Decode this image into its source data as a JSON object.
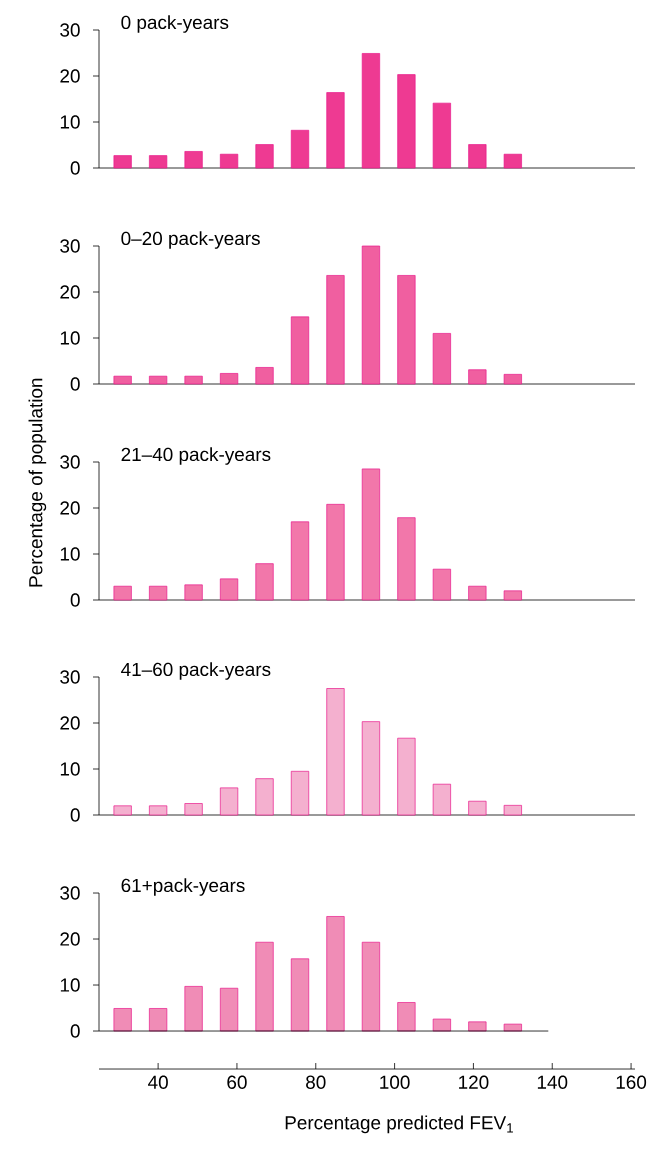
{
  "chart_data": [
    {
      "type": "bar",
      "title": "0 pack-years",
      "x": [
        31,
        40,
        49,
        58,
        67,
        76,
        85,
        94,
        103,
        112,
        121,
        130
      ],
      "values": [
        2.7,
        2.7,
        3.6,
        3.0,
        5.1,
        8.2,
        16.4,
        24.9,
        20.3,
        14.1,
        5.1,
        3.0
      ],
      "color": "#ee3a92",
      "xlim": [
        25,
        161
      ],
      "ylim": [
        0,
        30
      ],
      "yticks": [
        0,
        10,
        20,
        30
      ],
      "tick_labels": "y",
      "grid": false
    },
    {
      "type": "bar",
      "title": "0–20 pack-years",
      "x": [
        31,
        40,
        49,
        58,
        67,
        76,
        85,
        94,
        103,
        112,
        121,
        130
      ],
      "values": [
        1.7,
        1.7,
        1.7,
        2.3,
        3.6,
        14.6,
        23.6,
        30,
        23.6,
        11.0,
        3.1,
        2.1
      ],
      "color": "#f05fa0",
      "xlim": [
        25,
        161
      ],
      "ylim": [
        0,
        30
      ],
      "yticks": [
        0,
        10,
        20,
        30
      ],
      "tick_labels": "y",
      "grid": false
    },
    {
      "type": "bar",
      "title": "21–40 pack-years",
      "ylabel": "Percentage of population",
      "x": [
        31,
        40,
        49,
        58,
        67,
        76,
        85,
        94,
        103,
        112,
        121,
        130
      ],
      "values": [
        3.0,
        3.0,
        3.3,
        4.6,
        7.9,
        17.0,
        20.8,
        28.5,
        17.9,
        6.7,
        3.0,
        2.0
      ],
      "color": "#f277aa",
      "xlim": [
        25,
        161
      ],
      "ylim": [
        0,
        30
      ],
      "yticks": [
        0,
        10,
        20,
        30
      ],
      "tick_labels": "y",
      "grid": false
    },
    {
      "type": "bar",
      "title": "41–60 pack-years",
      "x": [
        31,
        40,
        49,
        58,
        67,
        76,
        85,
        94,
        103,
        112,
        121,
        130
      ],
      "values": [
        2.0,
        2.0,
        2.5,
        5.9,
        7.9,
        9.5,
        27.5,
        20.3,
        16.7,
        6.7,
        3.0,
        2.1
      ],
      "color": "#f4b0cf",
      "xlim": [
        25,
        161
      ],
      "ylim": [
        0,
        30
      ],
      "yticks": [
        0,
        10,
        20,
        30
      ],
      "tick_labels": "y",
      "grid": false
    },
    {
      "type": "bar",
      "title": "61+pack-years",
      "xlabel": "Percentage predicted FEV$_{1}$",
      "x": [
        31,
        40,
        49,
        58,
        67,
        76,
        85,
        94,
        103,
        112,
        121,
        130
      ],
      "values": [
        4.9,
        4.9,
        9.7,
        9.3,
        19.3,
        15.7,
        24.9,
        19.3,
        6.2,
        2.6,
        2.0,
        1.5
      ],
      "color": "#f08cb6",
      "xlim": [
        25,
        161
      ],
      "ylim": [
        0,
        30
      ],
      "yticks": [
        0,
        10,
        20,
        30
      ],
      "xticks": [
        40,
        60,
        80,
        100,
        120,
        140,
        160
      ],
      "grid": false
    }
  ]
}
